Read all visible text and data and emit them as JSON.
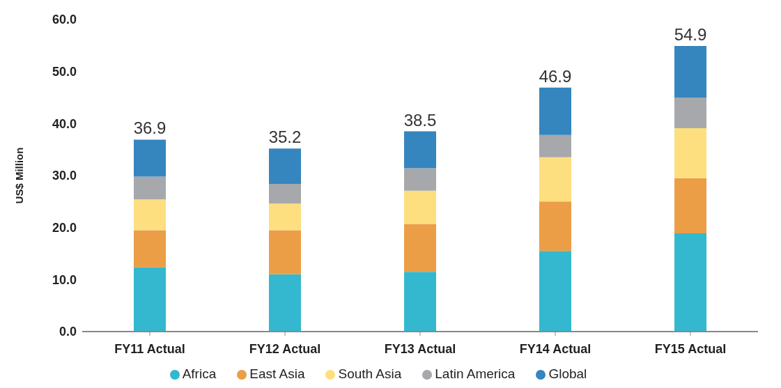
{
  "chart_data": {
    "type": "bar",
    "stacked": true,
    "ylabel": "US$ Million",
    "categories": [
      "FY11 Actual",
      "FY12 Actual",
      "FY13 Actual",
      "FY14 Actual",
      "FY15 Actual"
    ],
    "series": [
      {
        "name": "Africa",
        "color": "#33b8cf",
        "values": [
          12.4,
          11.0,
          11.5,
          15.5,
          18.9
        ]
      },
      {
        "name": "East Asia",
        "color": "#eb9e45",
        "values": [
          7.1,
          8.5,
          9.2,
          9.5,
          10.6
        ]
      },
      {
        "name": "South Asia",
        "color": "#fddf80",
        "values": [
          5.9,
          5.1,
          6.4,
          8.5,
          9.6
        ]
      },
      {
        "name": "Latin America",
        "color": "#a7a8ab",
        "values": [
          4.4,
          3.8,
          4.3,
          4.3,
          5.9
        ]
      },
      {
        "name": "Global",
        "color": "#3585bf",
        "values": [
          7.1,
          6.8,
          7.1,
          9.1,
          9.9
        ]
      }
    ],
    "totals": [
      "36.9",
      "35.2",
      "38.5",
      "46.9",
      "54.9"
    ],
    "ylim": [
      0,
      60
    ],
    "yticks": [
      {
        "value": 0,
        "label": "0.0"
      },
      {
        "value": 10,
        "label": "10.0"
      },
      {
        "value": 20,
        "label": "20.0"
      },
      {
        "value": 30,
        "label": "30.0"
      },
      {
        "value": 40,
        "label": "40.0"
      },
      {
        "value": 50,
        "label": "50.0"
      },
      {
        "value": 60,
        "label": "60.0"
      }
    ],
    "grid": false,
    "legend": "bottom"
  }
}
